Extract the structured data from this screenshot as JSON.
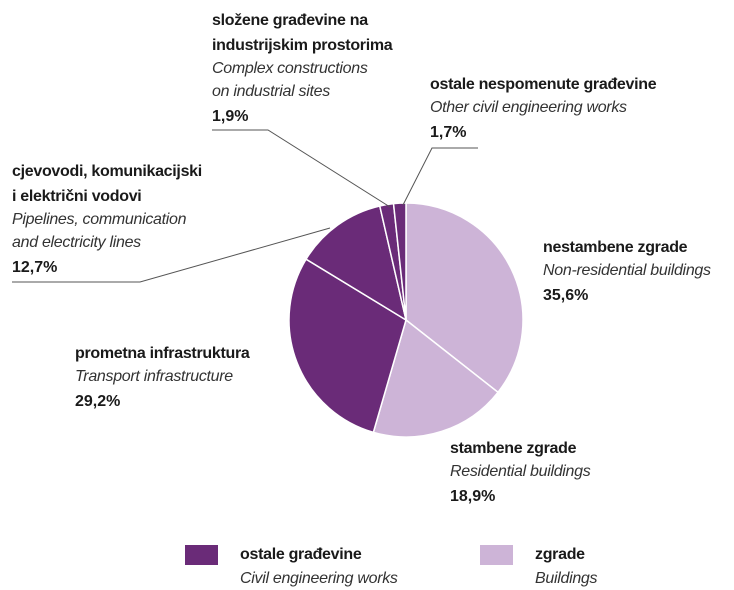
{
  "chart_data": {
    "type": "pie",
    "categories": [
      {
        "name": [
          "nestambene zgrade"
        ],
        "subtitle": [
          "Non-residential buildings"
        ]
      },
      {
        "name": [
          "stambene zgrade"
        ],
        "subtitle": [
          "Residential buildings"
        ]
      },
      {
        "name": [
          "prometna infrastruktura"
        ],
        "subtitle": [
          "Transport infrastructure"
        ]
      },
      {
        "name": [
          "cjevovodi, komunikacijski",
          "i električni vodovi"
        ],
        "subtitle": [
          "Pipelines, communication",
          "and electricity lines"
        ]
      },
      {
        "name": [
          "složene građevine na",
          "industrijskim prostorima"
        ],
        "subtitle": [
          "Complex constructions",
          "on industrial sites"
        ]
      },
      {
        "name": [
          "ostale nespomenute građevine"
        ],
        "subtitle": [
          "Other civil engineering works"
        ]
      }
    ],
    "values": [
      35.6,
      18.9,
      29.2,
      12.7,
      1.9,
      1.7
    ],
    "value_labels": [
      "35,6%",
      "18,9%",
      "29,2%",
      "12,7%",
      "1,9%",
      "1,7%"
    ],
    "colors": [
      "#cdb4d7",
      "#cdb4d7",
      "#6a2b78",
      "#6a2b78",
      "#6a2b78",
      "#6a2b78"
    ],
    "legend": [
      {
        "name": "ostale građevine",
        "subtitle": "Civil engineering works",
        "color": "#6a2b78"
      },
      {
        "name": "zgrade",
        "subtitle": "Buildings",
        "color": "#cdb4d7"
      }
    ]
  }
}
